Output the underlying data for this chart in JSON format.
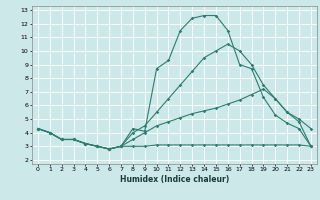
{
  "xlabel": "Humidex (Indice chaleur)",
  "bg_color": "#cce8e8",
  "grid_color": "#ffffff",
  "line_color": "#2e7d6e",
  "xlim": [
    -0.5,
    23.5
  ],
  "ylim": [
    1.7,
    13.3
  ],
  "xticks": [
    0,
    1,
    2,
    3,
    4,
    5,
    6,
    7,
    8,
    9,
    10,
    11,
    12,
    13,
    14,
    15,
    16,
    17,
    18,
    19,
    20,
    21,
    22,
    23
  ],
  "yticks": [
    2,
    3,
    4,
    5,
    6,
    7,
    8,
    9,
    10,
    11,
    12,
    13
  ],
  "x": [
    0,
    1,
    2,
    3,
    4,
    5,
    6,
    7,
    8,
    9,
    10,
    11,
    12,
    13,
    14,
    15,
    16,
    17,
    18,
    19,
    20,
    21,
    22,
    23
  ],
  "line1": [
    4.3,
    4.0,
    3.5,
    3.5,
    3.2,
    3.0,
    2.8,
    3.0,
    4.3,
    4.1,
    8.7,
    9.3,
    11.5,
    12.4,
    12.6,
    12.6,
    11.5,
    9.0,
    8.7,
    6.6,
    5.3,
    4.7,
    4.3,
    3.0
  ],
  "line2": [
    4.3,
    4.0,
    3.5,
    3.5,
    3.2,
    3.0,
    2.8,
    3.0,
    4.0,
    4.5,
    5.5,
    6.5,
    7.5,
    8.5,
    9.5,
    10.0,
    10.5,
    10.0,
    9.0,
    7.5,
    6.5,
    5.5,
    5.0,
    4.3
  ],
  "line3": [
    4.3,
    4.0,
    3.5,
    3.5,
    3.2,
    3.0,
    2.8,
    3.0,
    3.0,
    3.0,
    3.1,
    3.1,
    3.1,
    3.1,
    3.1,
    3.1,
    3.1,
    3.1,
    3.1,
    3.1,
    3.1,
    3.1,
    3.1,
    3.0
  ],
  "line4": [
    4.3,
    4.0,
    3.5,
    3.5,
    3.2,
    3.0,
    2.8,
    3.0,
    3.5,
    4.0,
    4.5,
    4.8,
    5.1,
    5.4,
    5.6,
    5.8,
    6.1,
    6.4,
    6.8,
    7.2,
    6.5,
    5.5,
    4.8,
    3.0
  ]
}
